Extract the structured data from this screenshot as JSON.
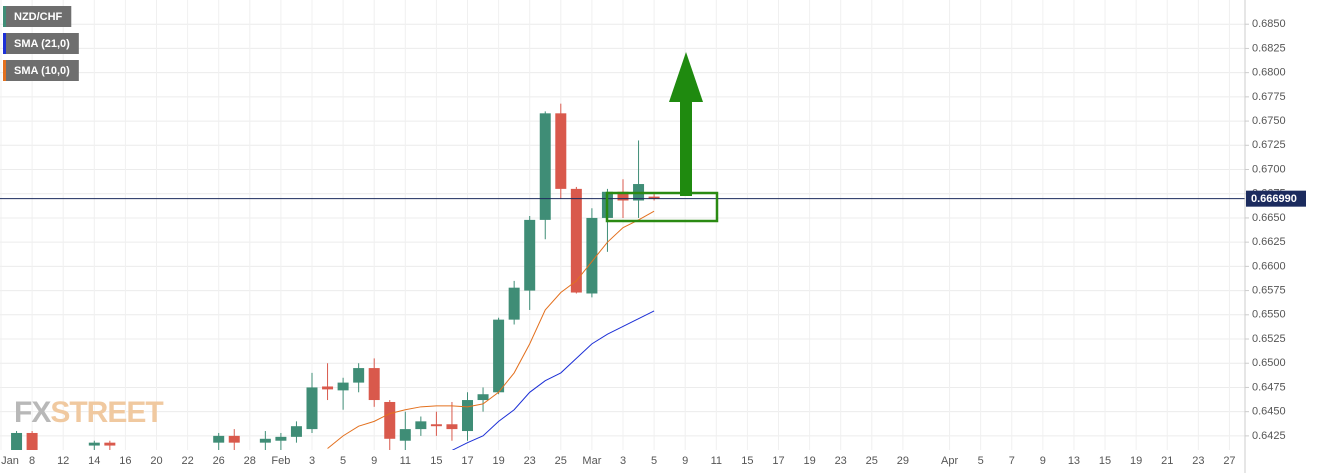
{
  "chart_data": {
    "type": "candlestick",
    "categories": [
      "Jan",
      null,
      "8",
      null,
      "12",
      null,
      "14",
      null,
      "16",
      null,
      "20",
      null,
      "22",
      null,
      "26",
      null,
      "28",
      null,
      "Feb",
      null,
      "3",
      null,
      "5",
      null,
      "9",
      null,
      "11",
      null,
      "15",
      null,
      "17",
      null,
      "19",
      null,
      "23",
      null,
      "25",
      null,
      "Mar",
      null,
      "3",
      null,
      "5",
      null,
      "9",
      null,
      "11",
      null,
      "15",
      null,
      "17",
      null,
      "19",
      null,
      "23",
      null,
      "25",
      null,
      "29",
      null,
      null,
      "Apr",
      null,
      "5",
      null,
      "7",
      null,
      "9",
      null,
      "13",
      null,
      "15",
      null,
      "19",
      null,
      "21",
      null,
      "23",
      null,
      "27"
    ],
    "series": [
      {
        "name": "NZD/CHF",
        "color": "#3f8d76",
        "down_color": "#d9594c",
        "open": [
          null,
          0.641,
          0.6428,
          null,
          null,
          null,
          0.6415,
          0.6418,
          null,
          null,
          null,
          null,
          null,
          null,
          0.6418,
          0.6425,
          null,
          0.6418,
          0.642,
          0.6424,
          0.6432,
          0.6476,
          0.6472,
          0.648,
          0.6495,
          0.646,
          0.642,
          0.6432,
          0.6437,
          0.6437,
          0.643,
          0.6462,
          0.647,
          0.6545,
          0.6575,
          0.6648,
          0.6758,
          0.668,
          0.6572,
          0.665,
          0.6677,
          0.6668,
          0.6672,
          null,
          null,
          null,
          null,
          null,
          null,
          null,
          null,
          null,
          null,
          null,
          null,
          null,
          null,
          null,
          null,
          null,
          null,
          null,
          null,
          null,
          null,
          null,
          null,
          null,
          null,
          null,
          null,
          null,
          null,
          null,
          null,
          null,
          null,
          null,
          null,
          null
        ],
        "high": [
          null,
          0.643,
          0.643,
          null,
          null,
          null,
          0.642,
          0.642,
          null,
          null,
          null,
          null,
          null,
          null,
          0.6428,
          0.6432,
          null,
          0.643,
          0.6428,
          0.644,
          0.649,
          0.65,
          0.6485,
          0.65,
          0.6505,
          0.6462,
          0.645,
          0.6445,
          0.645,
          0.646,
          0.647,
          0.6475,
          0.6547,
          0.6585,
          0.6652,
          0.676,
          0.6768,
          0.6682,
          0.666,
          0.668,
          0.669,
          0.673,
          0.6675,
          null,
          null,
          null,
          null,
          null,
          null,
          null,
          null,
          null,
          null,
          null,
          null,
          null,
          null,
          null,
          null,
          null,
          null,
          null,
          null,
          null,
          null,
          null,
          null,
          null,
          null,
          null,
          null,
          null,
          null,
          null,
          null,
          null,
          null,
          null,
          null,
          null
        ],
        "low": [
          null,
          0.64,
          0.64,
          null,
          null,
          null,
          0.641,
          0.641,
          null,
          null,
          null,
          null,
          null,
          null,
          0.641,
          0.641,
          null,
          0.641,
          0.641,
          0.6418,
          0.6428,
          0.6462,
          0.6452,
          0.647,
          0.6455,
          0.6405,
          0.641,
          0.6425,
          0.6425,
          0.642,
          0.642,
          0.645,
          0.6468,
          0.654,
          0.6555,
          0.6628,
          0.667,
          0.6572,
          0.6568,
          0.6615,
          0.665,
          0.665,
          0.6668,
          null,
          null,
          null,
          null,
          null,
          null,
          null,
          null,
          null,
          null,
          null,
          null,
          null,
          null,
          null,
          null,
          null,
          null,
          null,
          null,
          null,
          null,
          null,
          null,
          null,
          null,
          null,
          null,
          null,
          null,
          null,
          null,
          null,
          null,
          null,
          null,
          null
        ],
        "close": [
          null,
          0.6428,
          0.641,
          null,
          null,
          null,
          0.6418,
          0.6415,
          null,
          null,
          null,
          null,
          null,
          null,
          0.6425,
          0.6418,
          null,
          0.6422,
          0.6424,
          0.6435,
          0.6475,
          0.6473,
          0.648,
          0.6495,
          0.6462,
          0.6422,
          0.6432,
          0.644,
          0.6435,
          0.6432,
          0.6462,
          0.6468,
          0.6545,
          0.6578,
          0.6648,
          0.6758,
          0.668,
          0.6573,
          0.665,
          0.6677,
          0.6668,
          0.6685,
          0.667,
          null,
          null,
          null,
          null,
          null,
          null,
          null,
          null,
          null,
          null,
          null,
          null,
          null,
          null,
          null,
          null,
          null,
          null,
          null,
          null,
          null,
          null,
          null,
          null,
          null,
          null,
          null,
          null,
          null,
          null,
          null,
          null,
          null,
          null,
          null,
          null,
          null
        ]
      },
      {
        "name": "SMA (21,0)",
        "color": "#1c2fd6",
        "type": "line",
        "values": [
          null,
          null,
          null,
          null,
          null,
          null,
          null,
          null,
          null,
          null,
          null,
          null,
          null,
          null,
          null,
          null,
          null,
          null,
          null,
          null,
          null,
          null,
          null,
          null,
          null,
          null,
          null,
          null,
          0.6402,
          0.641,
          0.6418,
          0.6425,
          0.644,
          0.6452,
          0.647,
          0.6482,
          0.649,
          0.6505,
          0.652,
          0.653,
          0.6538,
          0.6546,
          0.6554,
          null,
          null,
          null,
          null,
          null,
          null,
          null,
          null,
          null,
          null,
          null,
          null,
          null,
          null,
          null,
          null,
          null,
          null,
          null,
          null,
          null,
          null,
          null,
          null,
          null,
          null,
          null,
          null,
          null,
          null,
          null,
          null,
          null,
          null,
          null,
          null,
          null
        ]
      },
      {
        "name": "SMA (10,0)",
        "color": "#e3701e",
        "type": "line",
        "values": [
          null,
          null,
          null,
          null,
          null,
          null,
          null,
          null,
          null,
          null,
          null,
          null,
          null,
          null,
          null,
          null,
          null,
          null,
          null,
          null,
          null,
          0.6412,
          0.6425,
          0.6435,
          0.644,
          0.6448,
          0.6452,
          0.6455,
          0.6456,
          0.6456,
          0.6455,
          0.6458,
          0.647,
          0.649,
          0.652,
          0.6555,
          0.6573,
          0.6585,
          0.6605,
          0.6625,
          0.664,
          0.6648,
          0.6657,
          null,
          null,
          null,
          null,
          null,
          null,
          null,
          null,
          null,
          null,
          null,
          null,
          null,
          null,
          null,
          null,
          null,
          null,
          null,
          null,
          null,
          null,
          null,
          null,
          null,
          null,
          null,
          null,
          null,
          null,
          null,
          null,
          null,
          null,
          null,
          null,
          null
        ]
      }
    ],
    "ylim": [
      0.6397,
      0.6875
    ],
    "yticks": [
      {
        "value": 0.6425,
        "label": "0.6425"
      },
      {
        "value": 0.645,
        "label": "0.6450"
      },
      {
        "value": 0.6475,
        "label": "0.6475"
      },
      {
        "value": 0.65,
        "label": "0.6500"
      },
      {
        "value": 0.6525,
        "label": "0.6525"
      },
      {
        "value": 0.655,
        "label": "0.6550"
      },
      {
        "value": 0.6575,
        "label": "0.6575"
      },
      {
        "value": 0.66,
        "label": "0.6600"
      },
      {
        "value": 0.6625,
        "label": "0.6625"
      },
      {
        "value": 0.665,
        "label": "0.6650"
      },
      {
        "value": 0.6675,
        "label": "0.6675"
      },
      {
        "value": 0.67,
        "label": "0.6700"
      },
      {
        "value": 0.6725,
        "label": "0.6725"
      },
      {
        "value": 0.675,
        "label": "0.6750"
      },
      {
        "value": 0.6775,
        "label": "0.6775"
      },
      {
        "value": 0.68,
        "label": "0.6800"
      },
      {
        "value": 0.6825,
        "label": "0.6825"
      },
      {
        "value": 0.685,
        "label": "0.6850"
      }
    ],
    "last_price": {
      "value": 0.66699,
      "label": "0.666990",
      "color": "#1b2b5e"
    },
    "grid": true,
    "legend": "top-left",
    "watermark": [
      "FX",
      "STREET"
    ]
  }
}
